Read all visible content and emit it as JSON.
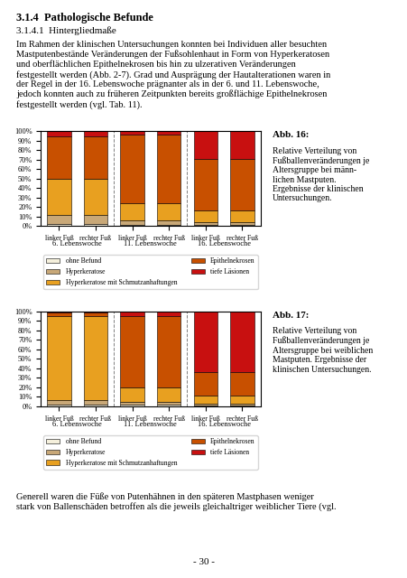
{
  "title": "3.1.4  Pathologische Befunde",
  "subtitle": "3.1.4.1  Hintergliedmaße",
  "annotations": [
    "Im Rahmen der klinischen Untersuchungen konnten bei Individuen aller besuchten\nMastputenbestände Veränderungen der Fußsohlenhaut in Form von Hyperkeratosen\nund oberflächlichen Epithelnekrosen bis hin zu ulzerativen Veränderungen\nfestgestellt werden (Abb. 2-7). Grad und Ausprägung der Hautalterationen waren in\nder Regel in der 16. Lebenswoche prägnanter als in der 6. und 11. Lebenswoche,\njedoch konnten auch zu früheren Zeitpunkten bereits großflächige Epithelnekrosen\nfestgestellt werden (vgl. Tab. 11).",
    "Generell waren die Füße von Putenhähnen in den späteren Mastphasen weniger\nstark von Ballenschäden betroffen als die jeweils gleichaltriger weiblicher Tiere (vgl.",
    "- 30 -"
  ],
  "chart_data": [
    {
      "type": "bar",
      "stacked": true,
      "grid": false,
      "legend": "upper center",
      "title": "Abb. 16:",
      "subtitle": "Relative Verteilung von\nFußballenveränderungen je\nAltersgruppe bei männ-\nlichen Mastputen.\nErgebnisse der klinischen\nUntersuchungen.",
      "categories": [
        "linker Fuß",
        "rechter Fuß",
        "linker Fuß",
        "rechter Fuß",
        "linker Fuß",
        "rechter Fuß"
      ],
      "group_labels": [
        "6. Lebenswoche",
        "11. Lebenswoche",
        "16. Lebenswoche"
      ],
      "ylim": [
        0,
        100
      ],
      "yticks": [
        {
          "value": 0,
          "label": "0%"
        },
        {
          "value": 10,
          "label": "10%"
        },
        {
          "value": 20,
          "label": "20%"
        },
        {
          "value": 30,
          "label": "30%"
        },
        {
          "value": 40,
          "label": "40%"
        },
        {
          "value": 50,
          "label": "50%"
        },
        {
          "value": 60,
          "label": "60%"
        },
        {
          "value": 70,
          "label": "70%"
        },
        {
          "value": 80,
          "label": "80%"
        },
        {
          "value": 90,
          "label": "90%"
        },
        {
          "value": 100,
          "label": "100%"
        }
      ],
      "series": [
        {
          "name": "ohne Befund",
          "color": "#F5F0DC",
          "values": [
            2,
            2,
            1,
            1,
            1,
            1
          ]
        },
        {
          "name": "Hyperkeratose",
          "color": "#C8A878",
          "values": [
            10,
            10,
            5,
            5,
            3,
            3
          ]
        },
        {
          "name": "Hyperkeratose mit Schmutzanhaftungen",
          "color": "#E8A020",
          "values": [
            38,
            38,
            18,
            18,
            12,
            12
          ]
        },
        {
          "name": "Epithelnekrosen",
          "color": "#C85000",
          "values": [
            45,
            45,
            72,
            72,
            55,
            55
          ]
        },
        {
          "name": "tiefe Läsionen",
          "color": "#C81010",
          "values": [
            5,
            5,
            4,
            4,
            29,
            29
          ]
        }
      ]
    },
    {
      "type": "bar",
      "stacked": true,
      "grid": false,
      "legend": "upper center",
      "title": "Abb. 17:",
      "subtitle": "Relative Verteilung von\nFußballenveränderungen je\nAltersgruppe bei weiblichen\nMastputen. Ergebnisse der\nklinischen Untersuchungen.",
      "categories": [
        "linker Fuß",
        "rechter Fuß",
        "linker Fuß",
        "rechter Fuß",
        "linker Fuß",
        "rechter Fuß"
      ],
      "group_labels": [
        "6. Lebenswoche",
        "11. Lebenswoche",
        "16. Lebenswoche"
      ],
      "ylim": [
        0,
        100
      ],
      "yticks": [
        {
          "value": 0,
          "label": "0%"
        },
        {
          "value": 10,
          "label": "10%"
        },
        {
          "value": 20,
          "label": "20%"
        },
        {
          "value": 30,
          "label": "30%"
        },
        {
          "value": 40,
          "label": "40%"
        },
        {
          "value": 50,
          "label": "50%"
        },
        {
          "value": 60,
          "label": "60%"
        },
        {
          "value": 70,
          "label": "70%"
        },
        {
          "value": 80,
          "label": "80%"
        },
        {
          "value": 90,
          "label": "90%"
        },
        {
          "value": 100,
          "label": "100%"
        }
      ],
      "series": [
        {
          "name": "ohne Befund",
          "color": "#F5F0DC",
          "values": [
            2,
            2,
            2,
            2,
            1,
            1
          ]
        },
        {
          "name": "Hyperkeratose",
          "color": "#C8A878",
          "values": [
            5,
            5,
            3,
            3,
            2,
            2
          ]
        },
        {
          "name": "Hyperkeratose mit Schmutzanhaftungen",
          "color": "#E8A020",
          "values": [
            88,
            88,
            15,
            15,
            8,
            8
          ]
        },
        {
          "name": "Epithelnekrosen",
          "color": "#C85000",
          "values": [
            4,
            4,
            75,
            75,
            25,
            25
          ]
        },
        {
          "name": "tiefe Läsionen",
          "color": "#C81010",
          "values": [
            1,
            1,
            5,
            5,
            64,
            64
          ]
        }
      ]
    }
  ]
}
